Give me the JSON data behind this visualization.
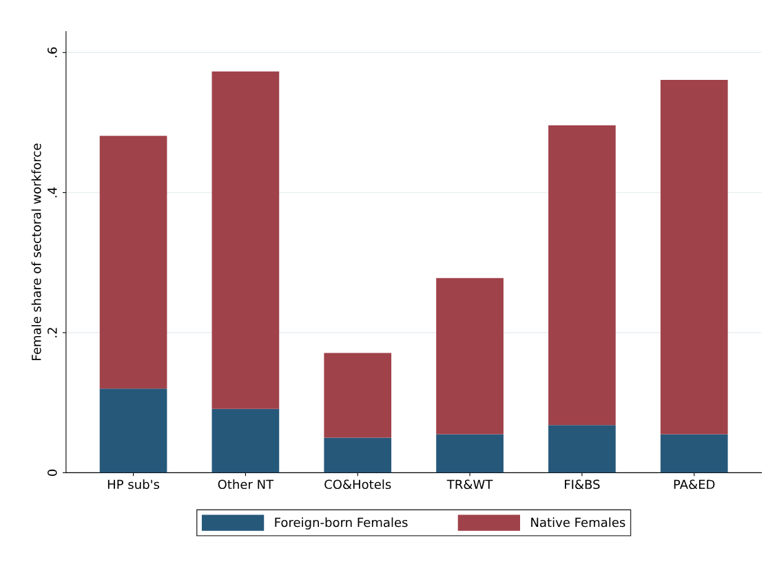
{
  "chart_data": {
    "type": "bar",
    "stacked": true,
    "ylabel": "Female share of sectoral workforce",
    "categories": [
      "HP sub's",
      "Other NT",
      "CO&Hotels",
      "TR&WT",
      "FI&BS",
      "PA&ED"
    ],
    "series": [
      {
        "name": "Foreign-born Females",
        "color": "#26587a",
        "values": [
          0.12,
          0.091,
          0.05,
          0.055,
          0.068,
          0.055
        ]
      },
      {
        "name": "Native Females",
        "color": "#a0424a",
        "values": [
          0.361,
          0.482,
          0.121,
          0.223,
          0.428,
          0.506
        ]
      }
    ],
    "ylim": [
      0,
      0.63
    ],
    "yticks": [
      {
        "value": 0,
        "label": "0"
      },
      {
        "value": 0.2,
        "label": ".2"
      },
      {
        "value": 0.4,
        "label": ".4"
      },
      {
        "value": 0.6,
        "label": ".6"
      }
    ],
    "grid": "y",
    "legend": "bottom"
  }
}
